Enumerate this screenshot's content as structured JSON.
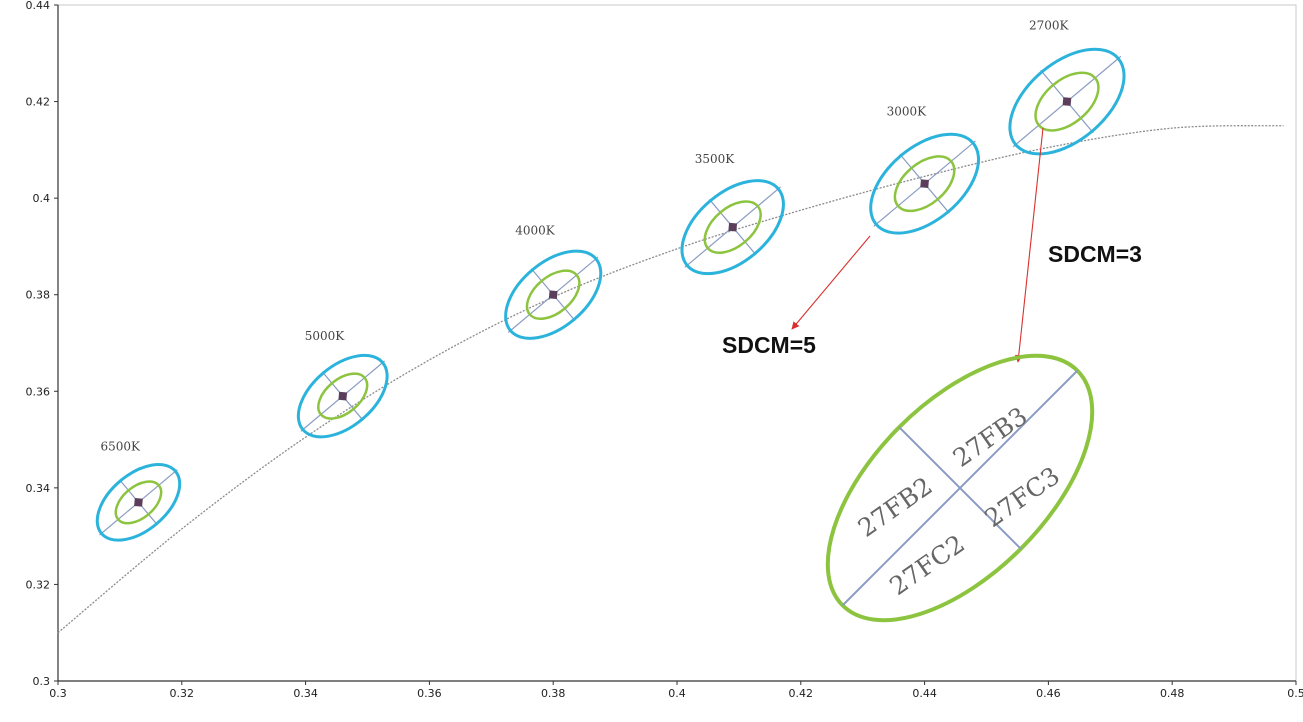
{
  "chart_data": {
    "type": "scatter",
    "title": "",
    "xlabel": "",
    "ylabel": "",
    "xlim": [
      0.3,
      0.5
    ],
    "ylim": [
      0.3,
      0.44
    ],
    "x_ticks": [
      "0.3",
      "0.32",
      "0.34",
      "0.36",
      "0.38",
      "0.4",
      "0.42",
      "0.44",
      "0.46",
      "0.48",
      "0.5"
    ],
    "y_ticks": [
      "0.3",
      "0.32",
      "0.34",
      "0.36",
      "0.38",
      "0.4",
      "0.42",
      "0.44"
    ],
    "grid": false,
    "points": [
      {
        "label": "6500K",
        "x": 0.313,
        "y": 0.337
      },
      {
        "label": "5000K",
        "x": 0.346,
        "y": 0.359
      },
      {
        "label": "4000K",
        "x": 0.38,
        "y": 0.38
      },
      {
        "label": "3500K",
        "x": 0.409,
        "y": 0.394
      },
      {
        "label": "3000K",
        "x": 0.44,
        "y": 0.403
      },
      {
        "label": "2700K",
        "x": 0.463,
        "y": 0.42
      }
    ],
    "curve": {
      "x": [
        0.3,
        0.32,
        0.34,
        0.36,
        0.38,
        0.4,
        0.42,
        0.44,
        0.46,
        0.48,
        0.498
      ],
      "y": [
        0.31,
        0.3315,
        0.3505,
        0.3665,
        0.3795,
        0.3895,
        0.3975,
        0.4045,
        0.4105,
        0.4145,
        0.415
      ]
    },
    "annotations": [
      {
        "text": "SDCM=5"
      },
      {
        "text": "SDCM=3"
      }
    ],
    "inset": {
      "cells": [
        "27FB2",
        "27FB3",
        "27FC2",
        "27FC3"
      ]
    },
    "colors": {
      "sdcm5_ellipse": "#2bb3dc",
      "sdcm3_ellipse": "#8cc43f",
      "center_point": "#5a3e5c",
      "axes_line": "#8a9cc2",
      "curve": "#8c8c8c",
      "arrow": "#d9302c"
    }
  }
}
